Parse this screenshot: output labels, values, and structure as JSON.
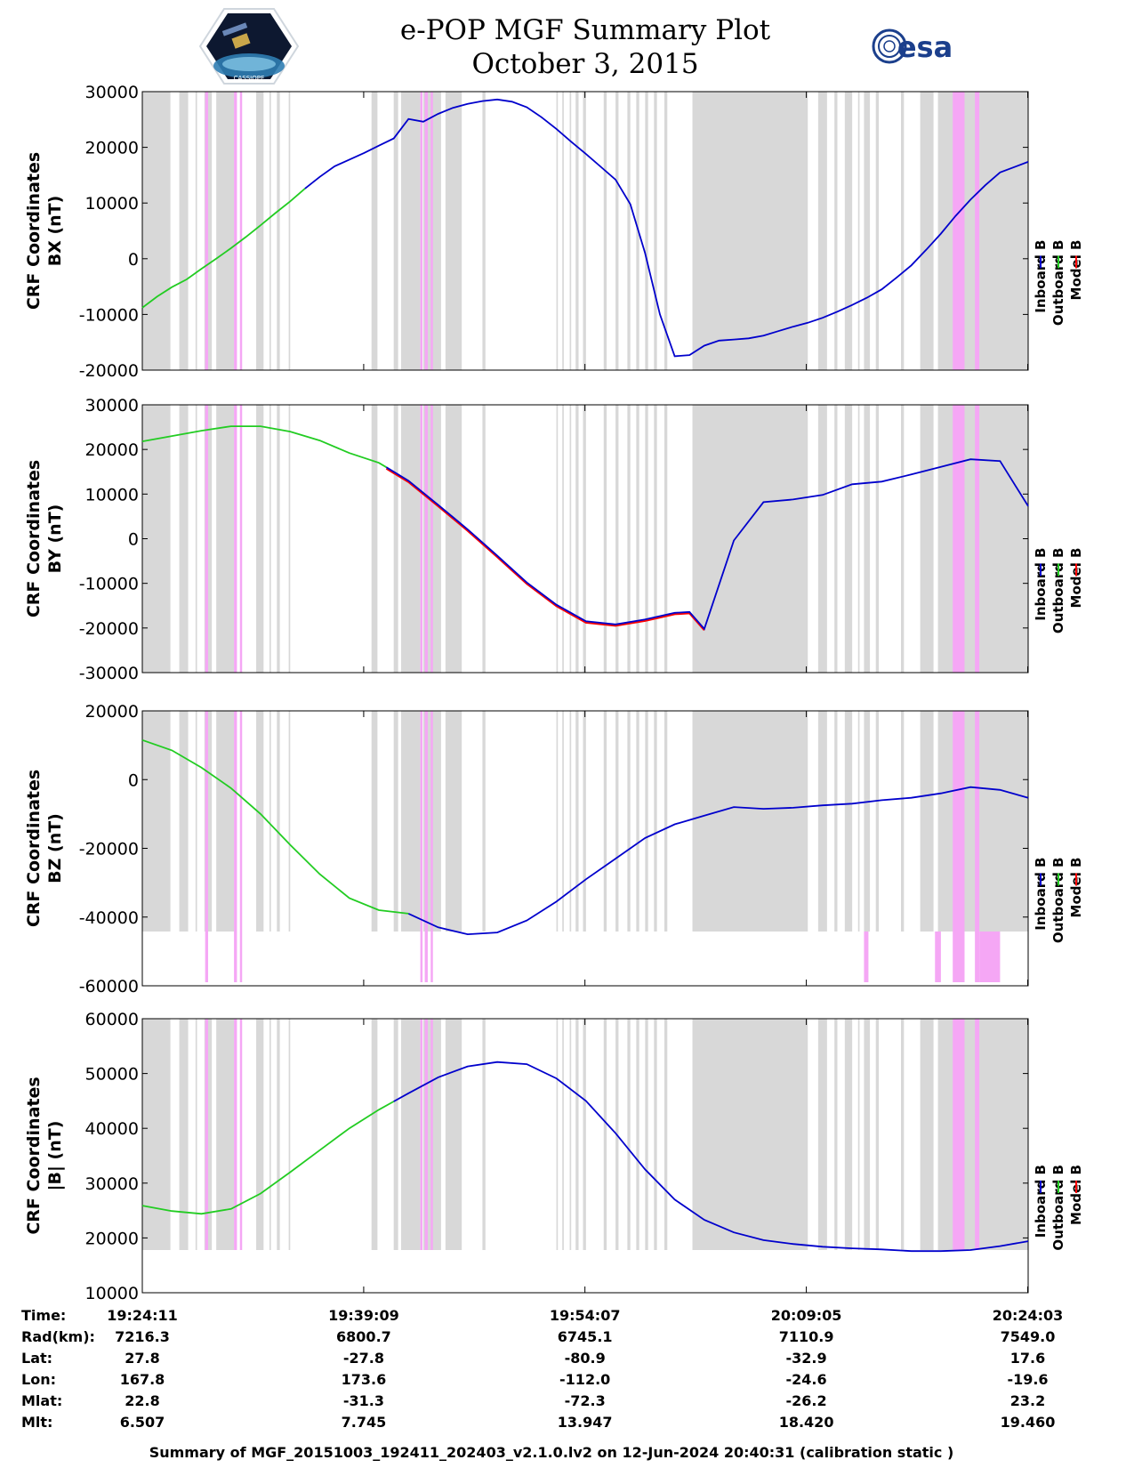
{
  "header": {
    "title": "e-POP MGF Summary Plot",
    "date": "October 3, 2015",
    "logo_left": "CASSIOPE",
    "logo_right": "esa"
  },
  "legend_labels": [
    "Inboard B",
    "Outboard B",
    "Model B"
  ],
  "colors": {
    "inboard": "#0000cc",
    "outboard": "#22cc22",
    "model": "#ff0000",
    "mask_gray": "#d8d8d8",
    "mask_pink": "#f5a7f5"
  },
  "chart_data": [
    {
      "type": "line",
      "key": "bx",
      "ylabel1": "CRF Coordinates",
      "ylabel2": "BX (nT)",
      "ylim": [
        -20000,
        30000
      ],
      "yticks": [
        "30000",
        "20000",
        "10000",
        "0",
        "-10000",
        "-20000"
      ],
      "green_until_min": 11.0,
      "x_min": [
        0,
        1,
        2,
        3,
        4,
        5,
        6,
        7,
        8,
        9,
        10,
        11,
        12,
        13,
        14,
        15,
        16,
        17,
        18,
        19,
        20,
        21,
        22,
        23,
        24,
        25,
        26,
        27,
        28,
        29,
        30,
        31,
        32,
        33,
        34,
        35,
        36,
        37,
        38,
        39,
        40,
        41,
        42,
        43,
        44,
        45,
        46,
        47,
        48,
        49,
        50,
        51,
        52,
        53,
        54,
        55,
        56,
        57,
        58,
        59.9
      ],
      "values": [
        -8800,
        -6800,
        -5100,
        -3700,
        -1800,
        0,
        1900,
        3900,
        6000,
        8200,
        10300,
        12600,
        14700,
        16600,
        17800,
        19000,
        20300,
        21600,
        25100,
        24600,
        26000,
        27100,
        27800,
        28300,
        28600,
        28200,
        27200,
        25400,
        23300,
        21000,
        18800,
        16500,
        14200,
        9800,
        1000,
        -10000,
        -17500,
        -17300,
        -15600,
        -14700,
        -14500,
        -14300,
        -13800,
        -13000,
        -12200,
        -11500,
        -10600,
        -9500,
        -8300,
        -7000,
        -5500,
        -3400,
        -1200,
        1600,
        4500,
        7700,
        10600,
        13200,
        15500,
        17400
      ]
    },
    {
      "type": "line",
      "key": "by",
      "ylabel1": "CRF Coordinates",
      "ylabel2": "BY (nT)",
      "ylim": [
        -30000,
        30000
      ],
      "yticks": [
        "30000",
        "20000",
        "10000",
        "0",
        "-10000",
        "-20000",
        "-30000"
      ],
      "green_until_min": 16.5,
      "model_from_min": 16.5,
      "model_until_min": 38.0,
      "x_min": [
        0,
        2,
        4,
        6,
        8,
        10,
        12,
        14,
        16,
        18,
        20,
        22,
        24,
        26,
        28,
        30,
        32,
        34,
        36,
        37,
        38,
        40,
        42,
        44,
        46,
        48,
        50,
        52,
        54,
        56,
        58,
        59.9
      ],
      "values": [
        21800,
        23000,
        24200,
        25200,
        25200,
        24000,
        22000,
        19200,
        17000,
        13000,
        7600,
        2100,
        -3800,
        -9800,
        -14800,
        -18500,
        -19200,
        -18100,
        -16600,
        -16400,
        -20200,
        -400,
        8200,
        8800,
        9800,
        12200,
        12800,
        14400,
        16100,
        17800,
        17400,
        7300
      ]
    },
    {
      "type": "line",
      "key": "bz",
      "ylabel1": "CRF Coordinates",
      "ylabel2": "BZ (nT)",
      "ylim": [
        -60000,
        20000
      ],
      "yticks": [
        "20000",
        "0",
        "-20000",
        "-40000",
        "-60000"
      ],
      "green_until_min": 18.0,
      "x_min": [
        0,
        2,
        4,
        6,
        8,
        10,
        12,
        14,
        16,
        18,
        20,
        22,
        24,
        26,
        28,
        30,
        32,
        34,
        36,
        38,
        40,
        42,
        44,
        46,
        48,
        50,
        52,
        54,
        56,
        58,
        59.9
      ],
      "values": [
        11500,
        8500,
        3500,
        -2500,
        -10000,
        -19000,
        -27500,
        -34500,
        -38000,
        -39000,
        -43000,
        -45000,
        -44500,
        -41000,
        -35500,
        -29000,
        -23000,
        -17000,
        -13000,
        -10500,
        -8000,
        -8500,
        -8200,
        -7500,
        -7000,
        -6000,
        -5300,
        -4000,
        -2200,
        -3000,
        -5300
      ]
    },
    {
      "type": "line",
      "key": "bmag",
      "ylabel1": "CRF Coordinates",
      "ylabel2": "|B| (nT)",
      "ylim": [
        10000,
        60000
      ],
      "yticks": [
        "60000",
        "50000",
        "40000",
        "30000",
        "20000",
        "10000"
      ],
      "green_until_min": 17.0,
      "x_min": [
        0,
        2,
        4,
        6,
        8,
        10,
        12,
        14,
        16,
        18,
        20,
        22,
        24,
        26,
        28,
        30,
        32,
        34,
        36,
        38,
        40,
        42,
        44,
        46,
        48,
        50,
        52,
        54,
        56,
        58,
        59.9
      ],
      "values": [
        25900,
        24900,
        24400,
        25300,
        28100,
        32000,
        36000,
        40000,
        43400,
        46400,
        49300,
        51300,
        52100,
        51700,
        49100,
        45000,
        39100,
        32500,
        27000,
        23300,
        21000,
        19600,
        18900,
        18400,
        18100,
        17900,
        17600,
        17600,
        17800,
        18500,
        19400
      ]
    }
  ],
  "x_axis": {
    "start_min": 0,
    "end_min": 59.9,
    "tick_mins": [
      0,
      14.97,
      29.93,
      44.9,
      59.87
    ]
  },
  "mask_gray_min": [
    [
      0,
      1.9
    ],
    [
      2.5,
      3.1
    ],
    [
      3.6,
      3.7
    ],
    [
      4.2,
      4.7
    ],
    [
      5.0,
      6.2
    ],
    [
      7.7,
      8.2
    ],
    [
      8.6,
      8.7
    ],
    [
      9.1,
      9.3
    ],
    [
      9.9,
      10.0
    ],
    [
      15.5,
      15.9
    ],
    [
      17.0,
      17.3
    ],
    [
      17.5,
      18.8
    ],
    [
      19.0,
      20.2
    ],
    [
      20.5,
      21.6
    ],
    [
      23.0,
      23.2
    ],
    [
      28.0,
      28.1
    ],
    [
      28.4,
      28.5
    ],
    [
      28.9,
      29.0
    ],
    [
      29.3,
      29.5
    ],
    [
      29.8,
      30.0
    ],
    [
      31.2,
      31.4
    ],
    [
      32.0,
      32.2
    ],
    [
      32.8,
      33.0
    ],
    [
      33.4,
      33.6
    ],
    [
      34.0,
      34.2
    ],
    [
      34.6,
      34.8
    ],
    [
      35.3,
      35.5
    ],
    [
      37.2,
      45.0
    ],
    [
      45.7,
      46.3
    ],
    [
      46.8,
      47.0
    ],
    [
      47.5,
      48.0
    ],
    [
      48.4,
      48.5
    ],
    [
      48.8,
      49.2
    ],
    [
      49.6,
      49.8
    ],
    [
      51.3,
      51.5
    ],
    [
      52.6,
      53.5
    ],
    [
      53.8,
      59.9
    ]
  ],
  "mask_pink_min": [
    [
      4.25,
      4.45
    ],
    [
      6.2,
      6.4
    ],
    [
      6.6,
      6.75
    ],
    [
      18.8,
      18.95
    ],
    [
      19.1,
      19.3
    ],
    [
      19.5,
      19.65
    ],
    [
      54.8,
      55.6
    ],
    [
      56.3,
      56.6
    ]
  ],
  "bz_extra_pink_min": [
    [
      48.8,
      49.1
    ],
    [
      53.6,
      54.0
    ],
    [
      56.6,
      58.0
    ]
  ],
  "time_table": {
    "row_labels": [
      "Time:",
      "Rad(km):",
      "Lat:",
      "Lon:",
      "Mlat:",
      "Mlt:"
    ],
    "columns": [
      [
        "19:24:11",
        "7216.3",
        "27.8",
        "167.8",
        "22.8",
        "6.507"
      ],
      [
        "19:39:09",
        "6800.7",
        "-27.8",
        "173.6",
        "-31.3",
        "7.745"
      ],
      [
        "19:54:07",
        "6745.1",
        "-80.9",
        "-112.0",
        "-72.3",
        "13.947"
      ],
      [
        "20:09:05",
        "7110.9",
        "-32.9",
        "-24.6",
        "-26.2",
        "18.420"
      ],
      [
        "20:24:03",
        "7549.0",
        "17.6",
        "-19.6",
        "23.2",
        "19.460"
      ]
    ]
  },
  "footer": "Summary of MGF_20151003_192411_202403_v2.1.0.lv2 on 12-Jun-2024 20:40:31 (calibration static )"
}
